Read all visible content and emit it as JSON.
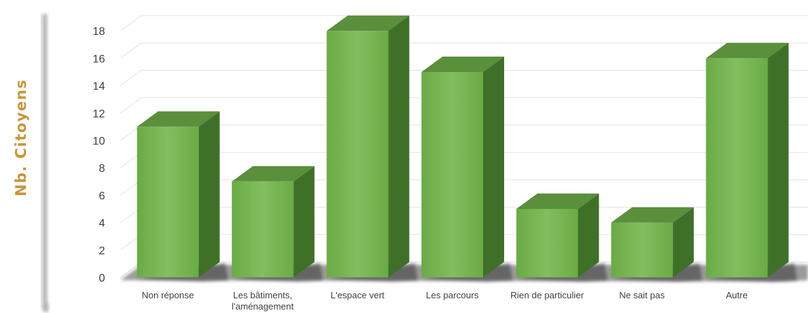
{
  "chart_data": {
    "type": "bar",
    "style": "3d-column",
    "ylabel": "Nb. Citoyens",
    "xlabel": "",
    "title": "",
    "ylim": [
      0,
      18
    ],
    "ytick_step": 2,
    "grid": true,
    "categories": [
      [
        "Non réponse"
      ],
      [
        "Les bâtiments,",
        "l'aménagement"
      ],
      [
        "L'espace vert"
      ],
      [
        "Les parcours"
      ],
      [
        "Rien de particulier"
      ],
      [
        "Ne sait pas"
      ],
      [
        "Autre"
      ]
    ],
    "values": [
      11,
      7,
      18,
      15,
      5,
      4,
      16
    ],
    "colors": {
      "bar_front": "#6fb04a",
      "bar_front_light": "#82bd5e",
      "bar_side": "#3f7028",
      "bar_top": "#5a8f3c",
      "frame": "#b8b8b8",
      "ylabel": "#c8963a"
    }
  }
}
